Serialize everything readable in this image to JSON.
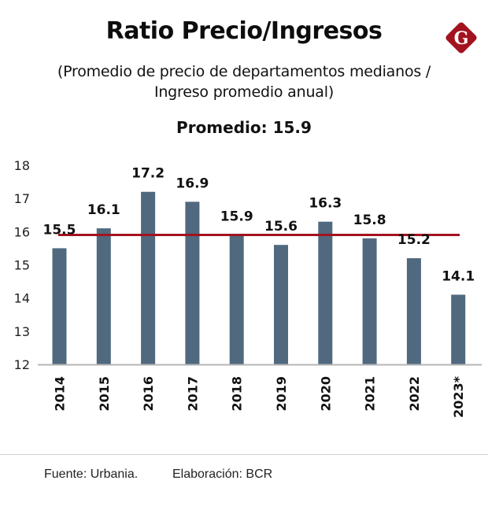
{
  "header": {
    "title": "Ratio Precio/Ingresos",
    "subtitle_line1": "(Promedio de precio de departamentos medianos /",
    "subtitle_line2": "Ingreso promedio anual)",
    "average_label": "Promedio: 15.9",
    "logo": {
      "icon": "g-diamond-logo-icon",
      "letter": "G",
      "color": "#a3121f"
    }
  },
  "chart_data": {
    "type": "bar",
    "title": "Ratio Precio/Ingresos",
    "subtitle": "(Promedio de precio de departamentos medianos / Ingreso promedio anual)",
    "xlabel": "",
    "ylabel": "",
    "categories": [
      "2014",
      "2015",
      "2016",
      "2017",
      "2018",
      "2019",
      "2020",
      "2021",
      "2022",
      "2023*"
    ],
    "values": [
      15.5,
      16.1,
      17.2,
      16.9,
      15.9,
      15.6,
      16.3,
      15.8,
      15.2,
      14.1
    ],
    "data_labels": [
      "15.5",
      "16.1",
      "17.2",
      "16.9",
      "15.9",
      "15.6",
      "16.3",
      "15.8",
      "15.2",
      "14.1"
    ],
    "ylim": [
      12,
      18
    ],
    "yticks": [
      12,
      13,
      14,
      15,
      16,
      17,
      18
    ],
    "grid": false,
    "bar_color": "#50697f",
    "reference_line": {
      "label": "Promedio",
      "value": 15.9,
      "color": "#a3121f"
    },
    "x_tick_rotation": "vertical"
  },
  "footer": {
    "source": "Fuente: Urbania.",
    "credit": "Elaboración: BCR"
  }
}
